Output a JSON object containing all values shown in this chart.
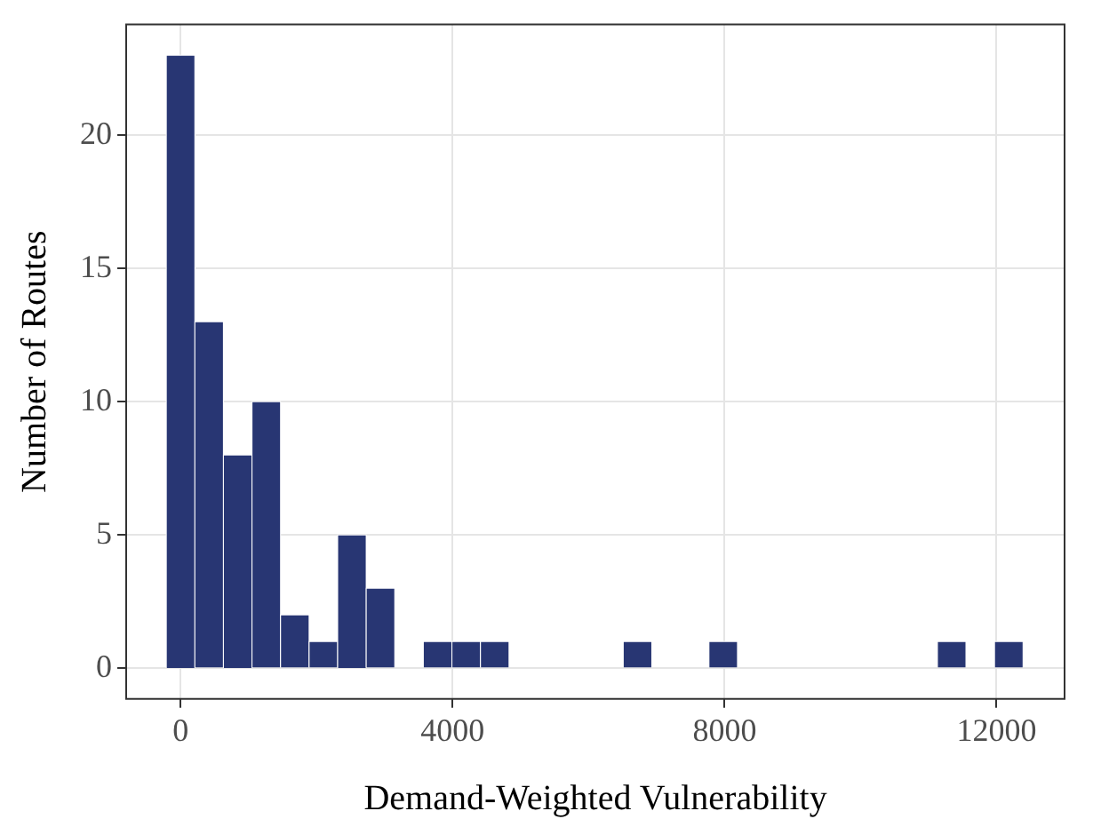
{
  "chart_data": {
    "type": "histogram",
    "xlabel": "Demand-Weighted Vulnerability",
    "ylabel": "Number of Routes",
    "bins": [
      -210,
      210,
      630,
      1050,
      1470,
      1890,
      2310,
      2730,
      3150,
      3570,
      3990,
      4410,
      4830,
      5250,
      5670,
      6090,
      6510,
      6930,
      7350,
      7770,
      8190,
      8610,
      9030,
      9450,
      9870,
      10290,
      10710,
      11130,
      11550,
      11970,
      12390
    ],
    "values": [
      23,
      13,
      8,
      10,
      2,
      1,
      5,
      3,
      0,
      1,
      1,
      1,
      0,
      0,
      0,
      0,
      1,
      0,
      0,
      1,
      0,
      0,
      0,
      0,
      0,
      0,
      0,
      1,
      0,
      1
    ],
    "color": "#283673",
    "xlim": [
      -800,
      13000
    ],
    "xticks": [
      0,
      4000,
      8000,
      12000
    ],
    "ylim": [
      -1.15,
      24.15
    ],
    "yticks": [
      0,
      5,
      10,
      15,
      20
    ],
    "grid": true
  }
}
